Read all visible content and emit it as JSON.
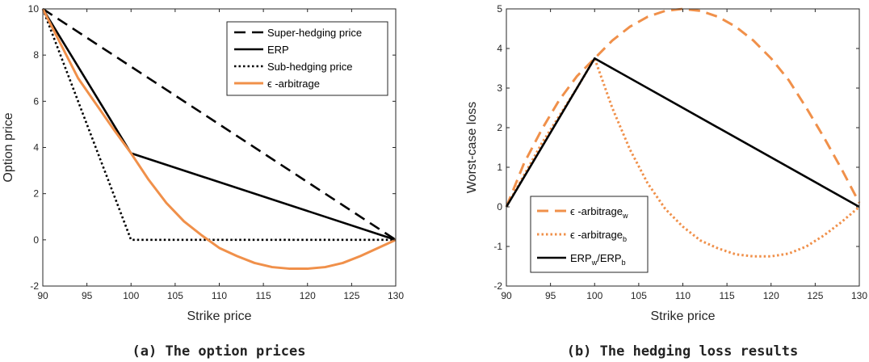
{
  "captions": [
    "(a) The option prices",
    "(b) The hedging loss results"
  ],
  "colors": {
    "black": "#000000",
    "orange": "#F0904A",
    "axis": "#262626"
  },
  "chart_data": [
    {
      "type": "line",
      "title": "",
      "xlabel": "Strike price",
      "ylabel": "Option price",
      "xlim": [
        90,
        130
      ],
      "ylim": [
        -2,
        10
      ],
      "xticks": [
        90,
        95,
        100,
        105,
        110,
        115,
        120,
        125,
        130
      ],
      "yticks": [
        -2,
        0,
        2,
        4,
        6,
        8,
        10
      ],
      "legend_position": "top-right",
      "series": [
        {
          "name": "Super-hedging price",
          "style": "dashed",
          "color": "#000000",
          "x": [
            90,
            130
          ],
          "y": [
            10,
            0
          ]
        },
        {
          "name": "ERP",
          "style": "solid",
          "color": "#000000",
          "x": [
            90,
            100,
            130
          ],
          "y": [
            10,
            3.75,
            0
          ]
        },
        {
          "name": "Sub-hedging price",
          "style": "dotted",
          "color": "#000000",
          "x": [
            90,
            100,
            130
          ],
          "y": [
            10,
            0,
            0
          ]
        },
        {
          "name": "ϵ -arbitrage",
          "style": "solid",
          "color": "#F0904A",
          "x": [
            90,
            92,
            94,
            96,
            98,
            100,
            102,
            104,
            106,
            108,
            110,
            112,
            114,
            116,
            118,
            120,
            122,
            124,
            126,
            128,
            130
          ],
          "y": [
            10,
            8.5,
            7.0,
            5.9,
            4.8,
            3.75,
            2.6,
            1.6,
            0.8,
            0.2,
            -0.35,
            -0.7,
            -1.0,
            -1.18,
            -1.25,
            -1.25,
            -1.18,
            -1.0,
            -0.7,
            -0.35,
            0
          ]
        }
      ]
    },
    {
      "type": "line",
      "title": "",
      "xlabel": "Strike price",
      "ylabel": "Worst-case loss",
      "xlim": [
        90,
        130
      ],
      "ylim": [
        -2,
        5
      ],
      "xticks": [
        90,
        95,
        100,
        105,
        110,
        115,
        120,
        125,
        130
      ],
      "yticks": [
        -2,
        -1,
        0,
        1,
        2,
        3,
        4,
        5
      ],
      "legend_position": "bottom-left",
      "series": [
        {
          "name": "ϵ -arbitrage_w",
          "label_main": "ϵ -arbitrage",
          "label_sub": "w",
          "style": "dashed",
          "color": "#F0904A",
          "x": [
            90,
            92,
            94,
            96,
            98,
            100,
            102,
            104,
            106,
            108,
            110,
            112,
            114,
            116,
            118,
            120,
            122,
            124,
            126,
            128,
            130
          ],
          "y": [
            0,
            1.1,
            1.95,
            2.7,
            3.3,
            3.75,
            4.2,
            4.55,
            4.8,
            4.95,
            5.0,
            4.95,
            4.8,
            4.55,
            4.2,
            3.75,
            3.2,
            2.5,
            1.75,
            0.95,
            0.1
          ]
        },
        {
          "name": "ϵ -arbitrage_b",
          "label_main": "ϵ -arbitrage",
          "label_sub": "b",
          "style": "dotted",
          "color": "#F0904A",
          "x": [
            90,
            92,
            94,
            96,
            98,
            100,
            102,
            104,
            106,
            108,
            110,
            112,
            114,
            116,
            118,
            120,
            122,
            124,
            126,
            128,
            130
          ],
          "y": [
            0,
            0.8,
            1.6,
            2.3,
            3.0,
            3.75,
            2.5,
            1.45,
            0.6,
            -0.05,
            -0.5,
            -0.85,
            -1.05,
            -1.2,
            -1.25,
            -1.25,
            -1.18,
            -1.0,
            -0.72,
            -0.38,
            0
          ]
        },
        {
          "name": "ERP_w/ERP_b",
          "label_parts": [
            "ERP",
            "w",
            "/ERP",
            "b"
          ],
          "style": "solid",
          "color": "#000000",
          "x": [
            90,
            100,
            130
          ],
          "y": [
            0,
            3.75,
            0
          ]
        }
      ]
    }
  ]
}
